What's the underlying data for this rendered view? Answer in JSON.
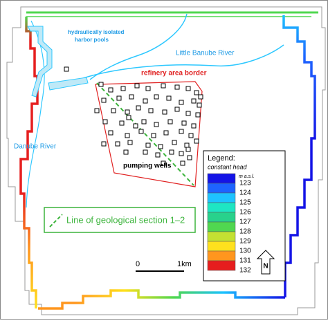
{
  "labels": {
    "harbor": [
      "hydraulically isolated",
      "harbor pools"
    ],
    "little_danube": "Little Banube River",
    "refinery": "refinery area border",
    "danube": "Danube River",
    "wells": "pumping wells",
    "section": "Line of geological section 1–2"
  },
  "legend": {
    "title": "Legend:",
    "subtitle": "constant head",
    "unit": "m a.s.l.",
    "entries": [
      {
        "value": 123,
        "color": "#1414e6"
      },
      {
        "value": 124,
        "color": "#1e64ff"
      },
      {
        "value": 125,
        "color": "#1ec3ff"
      },
      {
        "value": 126,
        "color": "#1ee6c3"
      },
      {
        "value": 127,
        "color": "#28d28c"
      },
      {
        "value": 128,
        "color": "#50d750"
      },
      {
        "value": 129,
        "color": "#c3e132"
      },
      {
        "value": 130,
        "color": "#ffe11e"
      },
      {
        "value": 131,
        "color": "#ff961e"
      },
      {
        "value": 132,
        "color": "#e61e1e"
      }
    ]
  },
  "scale": {
    "start": "0",
    "end": "1km"
  },
  "north": "N"
}
